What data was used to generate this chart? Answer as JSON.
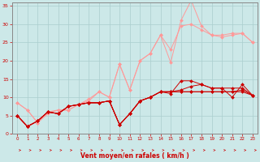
{
  "background_color": "#cce8e8",
  "grid_color": "#aacece",
  "xlabel": "Vent moyen/en rafales ( km/h )",
  "xlabel_color": "#cc0000",
  "tick_color": "#cc0000",
  "axis_color": "#888888",
  "xlim": [
    -0.5,
    23.5
  ],
  "ylim": [
    0,
    36
  ],
  "yticks": [
    0,
    5,
    10,
    15,
    20,
    25,
    30,
    35
  ],
  "xticks": [
    0,
    1,
    2,
    3,
    4,
    5,
    6,
    7,
    8,
    9,
    10,
    11,
    12,
    13,
    14,
    15,
    16,
    17,
    18,
    19,
    20,
    21,
    22,
    23
  ],
  "x": [
    0,
    1,
    2,
    3,
    4,
    5,
    6,
    7,
    8,
    9,
    10,
    11,
    12,
    13,
    14,
    15,
    16,
    17,
    18,
    19,
    20,
    21,
    22,
    23
  ],
  "series_light1": [
    8.5,
    6.5,
    3.0,
    5.5,
    6.5,
    6.5,
    8.0,
    9.5,
    11.5,
    10.0,
    19.0,
    12.0,
    20.0,
    22.0,
    27.0,
    19.5,
    31.0,
    36.5,
    29.5,
    27.0,
    27.0,
    27.5,
    27.5,
    25.0
  ],
  "series_light2": [
    8.5,
    6.5,
    3.0,
    6.0,
    6.5,
    6.5,
    8.0,
    9.0,
    11.5,
    10.0,
    19.0,
    12.0,
    20.0,
    22.0,
    27.0,
    23.0,
    29.5,
    30.0,
    28.5,
    27.0,
    26.5,
    27.0,
    27.5,
    25.0
  ],
  "series_dark1": [
    5.0,
    2.0,
    3.5,
    6.0,
    5.5,
    7.5,
    8.0,
    8.5,
    8.5,
    9.0,
    2.5,
    5.5,
    9.0,
    10.0,
    11.5,
    11.0,
    14.5,
    14.5,
    13.5,
    12.5,
    12.5,
    10.0,
    13.5,
    10.5
  ],
  "series_dark2": [
    5.0,
    2.0,
    3.5,
    6.0,
    5.5,
    7.5,
    8.0,
    8.5,
    8.5,
    9.0,
    2.5,
    5.5,
    9.0,
    10.0,
    11.5,
    11.5,
    12.0,
    13.0,
    13.5,
    12.5,
    12.5,
    12.5,
    12.5,
    10.5
  ],
  "series_dark3": [
    5.0,
    2.0,
    3.5,
    6.0,
    5.5,
    7.5,
    8.0,
    8.5,
    8.5,
    9.0,
    2.5,
    5.5,
    9.0,
    10.0,
    11.5,
    11.5,
    11.5,
    11.5,
    11.5,
    11.5,
    11.5,
    11.5,
    11.5,
    10.5
  ],
  "series_dark4": [
    5.0,
    2.0,
    3.5,
    6.0,
    5.5,
    7.5,
    8.0,
    8.5,
    8.5,
    9.0,
    2.5,
    5.5,
    9.0,
    10.0,
    11.5,
    11.5,
    11.5,
    11.5,
    11.5,
    11.5,
    11.5,
    11.5,
    12.0,
    10.5
  ],
  "light_color": "#ff9999",
  "dark_color": "#cc0000",
  "marker_size": 2.0,
  "line_width": 0.7
}
